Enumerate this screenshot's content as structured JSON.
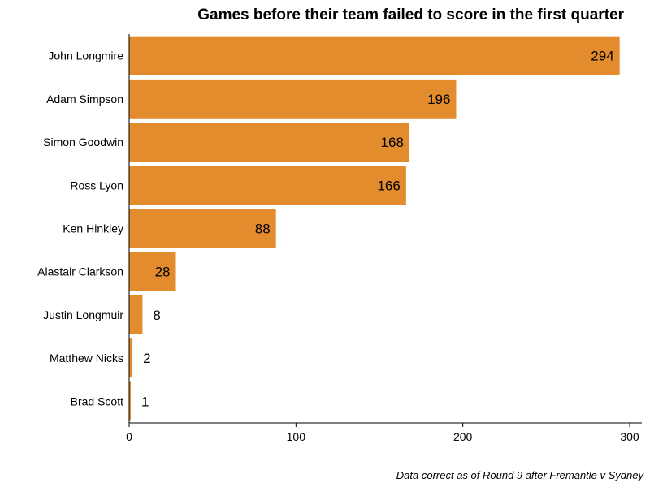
{
  "chart_data": {
    "type": "bar",
    "orientation": "horizontal",
    "title": "Games before their team failed to score in the first quarter",
    "categories": [
      "John Longmire",
      "Adam Simpson",
      "Simon Goodwin",
      "Ross Lyon",
      "Ken Hinkley",
      "Alastair Clarkson",
      "Justin Longmuir",
      "Matthew Nicks",
      "Brad Scott"
    ],
    "values": [
      294,
      196,
      168,
      166,
      88,
      28,
      8,
      2,
      1
    ],
    "xlim": [
      0,
      300
    ],
    "xticks": [
      0,
      100,
      200,
      300
    ],
    "xlabel": "",
    "ylabel": "",
    "bar_color": "#e38c2d",
    "grid": false,
    "footnote": "Data correct as of Round 9 after Fremantle v Sydney"
  }
}
